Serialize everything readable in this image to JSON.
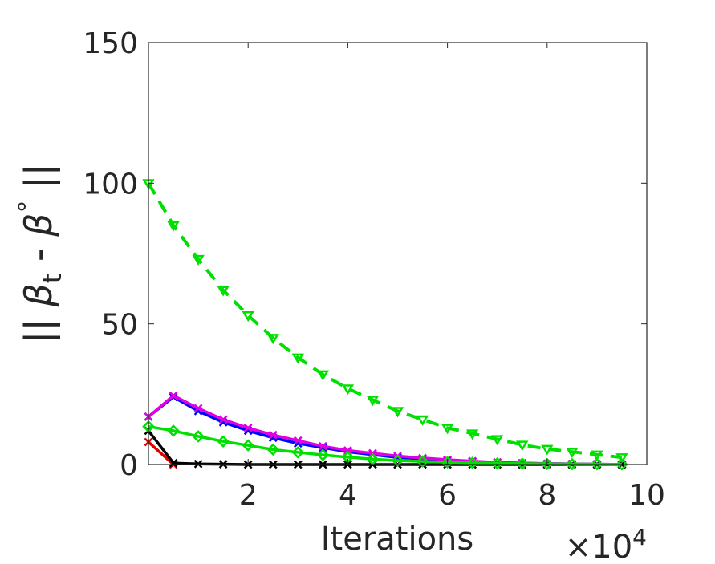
{
  "chart_data": {
    "type": "line",
    "xlabel": "Iterations",
    "ylabel": {
      "prefix": "|| ",
      "beta1": "β",
      "sub": "t",
      "mid": " - ",
      "beta2": "β",
      "sup": "°",
      "suffix": " ||"
    },
    "x_multiplier": {
      "base": "×10",
      "exp": "4"
    },
    "xlim": [
      0,
      10
    ],
    "ylim": [
      0,
      150
    ],
    "xticks": [
      2,
      4,
      6,
      8,
      10
    ],
    "yticks": [
      0,
      50,
      100,
      150
    ],
    "grid": false,
    "series": [
      {
        "color": "#00e000",
        "dash": true,
        "marker": "triangle-down",
        "x": [
          0,
          0.5,
          1,
          1.5,
          2,
          2.5,
          3,
          3.5,
          4,
          4.5,
          5,
          5.5,
          6,
          6.5,
          7,
          7.5,
          8,
          8.5,
          9,
          9.5
        ],
        "y": [
          100,
          85,
          73,
          62,
          53,
          45,
          38,
          32,
          27,
          23,
          19,
          16,
          13,
          11,
          9,
          7,
          5.5,
          4.5,
          3.5,
          2.5
        ]
      },
      {
        "color": "#0000ff",
        "dash": false,
        "marker": "x",
        "x": [
          0,
          0.5,
          1,
          1.5,
          2,
          2.5,
          3,
          3.5,
          4,
          4.5,
          5,
          5.5,
          6,
          6.5,
          7,
          7.5,
          8,
          8.5,
          9,
          9.5
        ],
        "y": [
          17,
          24,
          19,
          15,
          12,
          9.5,
          7.5,
          6,
          4.5,
          3.5,
          2.5,
          2,
          1.5,
          1,
          0.7,
          0.5,
          0.3,
          0.2,
          0.1,
          0.05
        ]
      },
      {
        "color": "#e000e0",
        "dash": false,
        "marker": "x",
        "x": [
          0,
          0.5,
          1,
          1.5,
          2,
          2.5,
          3,
          3.5,
          4,
          4.5,
          5,
          5.5,
          6,
          6.5,
          7,
          7.5,
          8,
          8.5,
          9,
          9.5
        ],
        "y": [
          17,
          24.5,
          20,
          16,
          13,
          10.5,
          8.5,
          6.5,
          5,
          4,
          3,
          2.3,
          1.7,
          1.2,
          0.8,
          0.5,
          0.3,
          0.2,
          0.1,
          0.05
        ]
      },
      {
        "color": "#e00000",
        "dash": false,
        "marker": "x",
        "x": [
          0,
          0.5
        ],
        "y": [
          8,
          0
        ]
      },
      {
        "color": "#000000",
        "dash": false,
        "marker": "x",
        "x": [
          0,
          0.5,
          1,
          1.5,
          2,
          2.5,
          3,
          3.5,
          4,
          4.5,
          5,
          5.5,
          6,
          6.5,
          7,
          7.5,
          8,
          8.5,
          9,
          9.5
        ],
        "y": [
          12,
          0.5,
          0.2,
          0.1,
          0,
          0,
          0,
          0,
          0,
          0,
          0,
          0,
          0,
          0,
          0,
          0,
          0,
          0,
          0,
          0
        ]
      },
      {
        "color": "#00e000",
        "dash": false,
        "marker": "diamond",
        "x": [
          0,
          0.5,
          1,
          1.5,
          2,
          2.5,
          3,
          3.5,
          4,
          4.5,
          5,
          5.5,
          6,
          6.5,
          7,
          7.5,
          8,
          8.5,
          9,
          9.5
        ],
        "y": [
          13.5,
          12,
          10,
          8.2,
          6.8,
          5.3,
          4.3,
          3.4,
          2.6,
          1.9,
          1.4,
          1.1,
          0.8,
          0.6,
          0.4,
          0.3,
          0.2,
          0.15,
          0.1,
          0.05
        ]
      }
    ]
  }
}
